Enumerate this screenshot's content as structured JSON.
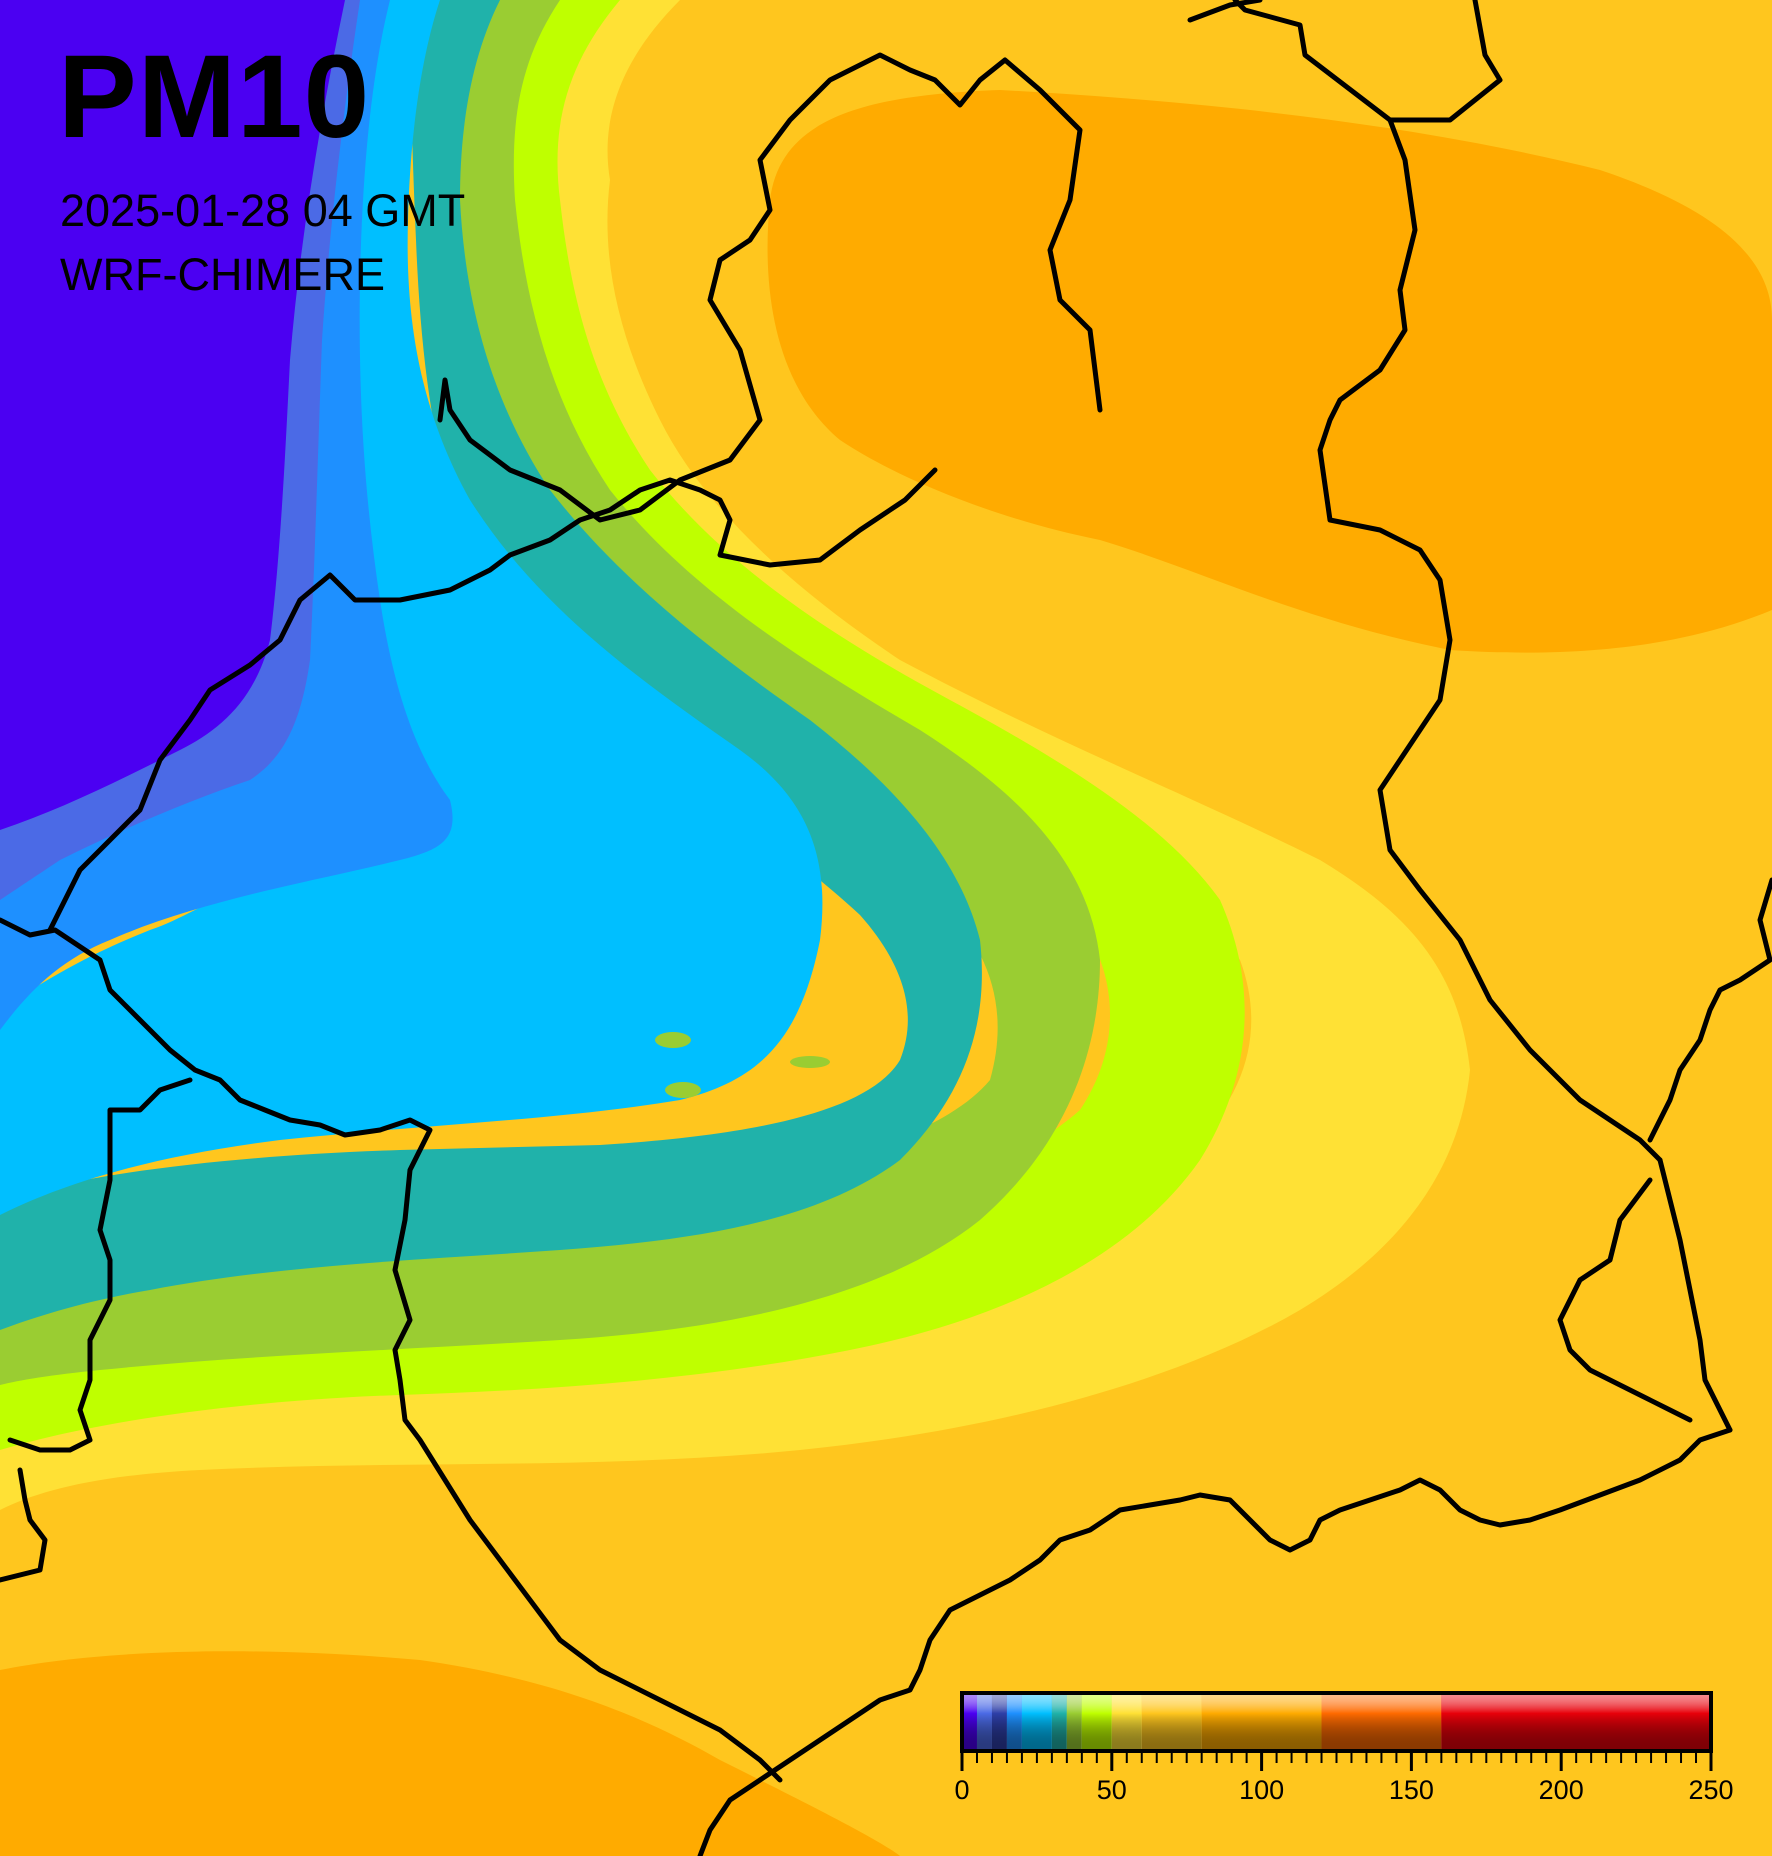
{
  "header": {
    "title": "PM10",
    "timestamp": "2025-01-28 04 GMT",
    "model": "WRF-CHIMERE"
  },
  "legend": {
    "min": 0,
    "max": 250,
    "tick_labels": [
      "0",
      "50",
      "100",
      "150",
      "200",
      "250"
    ],
    "tick_values": [
      0,
      50,
      100,
      150,
      200,
      250
    ],
    "color_bins": [
      {
        "from": 0,
        "to": 5,
        "color": "#4b00f2"
      },
      {
        "from": 5,
        "to": 10,
        "color": "#4b6ae6"
      },
      {
        "from": 10,
        "to": 15,
        "color": "#2e3fa8"
      },
      {
        "from": 15,
        "to": 20,
        "color": "#1e90ff"
      },
      {
        "from": 20,
        "to": 30,
        "color": "#00bfff"
      },
      {
        "from": 30,
        "to": 35,
        "color": "#20b2aa"
      },
      {
        "from": 35,
        "to": 40,
        "color": "#9acd32"
      },
      {
        "from": 40,
        "to": 50,
        "color": "#bfff00"
      },
      {
        "from": 50,
        "to": 60,
        "color": "#ffe135"
      },
      {
        "from": 60,
        "to": 80,
        "color": "#ffc61e"
      },
      {
        "from": 80,
        "to": 120,
        "color": "#ffab00"
      },
      {
        "from": 120,
        "to": 160,
        "color": "#ff6a00"
      },
      {
        "from": 160,
        "to": 250,
        "color": "#e8000a"
      }
    ]
  }
}
